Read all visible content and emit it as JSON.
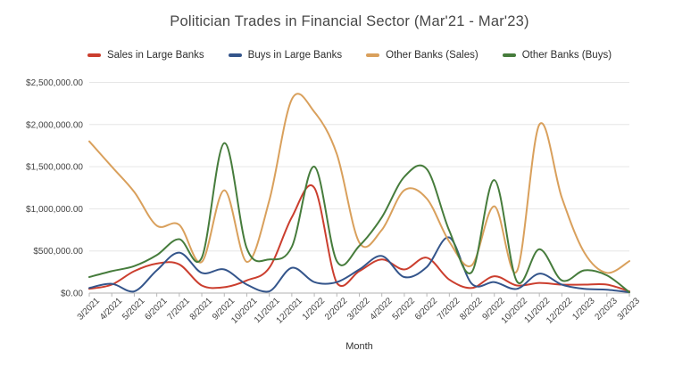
{
  "chart_data": {
    "type": "line",
    "title": "Politician Trades in Financial Sector (Mar'21 - Mar'23)",
    "xlabel": "Month",
    "ylabel": "",
    "ylim": [
      0,
      2500000
    ],
    "y_tick_step": 500000,
    "y_ticks": [
      "$0.00",
      "$500,000.00",
      "$1,000,000.00",
      "$1,500,000.00",
      "$2,000,000.00",
      "$2,500,000.00"
    ],
    "grid": "horizontal",
    "legend_position": "top",
    "smooth": true,
    "x_labels": [
      "3/2021",
      "4/2021",
      "5/2021",
      "6/2021",
      "7/2021",
      "8/2021",
      "9/2021",
      "10/2021",
      "11/2021",
      "12/2021",
      "1/2022",
      "2/2022",
      "3/2022",
      "4/2022",
      "5/2022",
      "6/2022",
      "7/2022",
      "8/2022",
      "9/2022",
      "10/2022",
      "11/2022",
      "12/2022",
      "1/2023",
      "2/2023",
      "3/2023"
    ],
    "series": [
      {
        "name": "Sales in Large Banks",
        "color": "#cb3e2e",
        "values": [
          50000,
          100000,
          260000,
          350000,
          340000,
          90000,
          70000,
          150000,
          300000,
          900000,
          1250000,
          120000,
          260000,
          400000,
          280000,
          420000,
          160000,
          60000,
          200000,
          90000,
          120000,
          100000,
          100000,
          100000,
          20000
        ]
      },
      {
        "name": "Buys in Large Banks",
        "color": "#34558b",
        "values": [
          60000,
          110000,
          20000,
          270000,
          480000,
          240000,
          280000,
          100000,
          20000,
          300000,
          130000,
          130000,
          280000,
          440000,
          190000,
          310000,
          660000,
          110000,
          130000,
          50000,
          230000,
          100000,
          50000,
          40000,
          10000
        ]
      },
      {
        "name": "Other Banks (Sales)",
        "color": "#d9a05c",
        "values": [
          1800000,
          1500000,
          1200000,
          800000,
          810000,
          370000,
          1220000,
          370000,
          1100000,
          2300000,
          2150000,
          1650000,
          600000,
          750000,
          1220000,
          1120000,
          610000,
          330000,
          1030000,
          260000,
          2000000,
          1130000,
          480000,
          240000,
          380000
        ]
      },
      {
        "name": "Other Banks (Buys)",
        "color": "#467c3c",
        "values": [
          190000,
          260000,
          320000,
          450000,
          640000,
          420000,
          1780000,
          530000,
          400000,
          550000,
          1500000,
          380000,
          560000,
          900000,
          1380000,
          1470000,
          740000,
          250000,
          1340000,
          140000,
          520000,
          150000,
          270000,
          210000,
          10000
        ]
      }
    ]
  },
  "colors": {
    "grid": "#e6e6e6",
    "axis": "#b0b0b0",
    "tick": "#b7b7b7",
    "tick_label": "#444444",
    "title": "#474747",
    "legend_text": "#2e2e2e"
  }
}
